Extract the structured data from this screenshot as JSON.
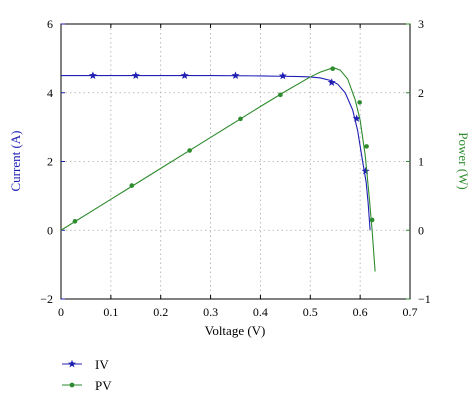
{
  "chart_data": {
    "type": "line",
    "xlabel": "Voltage (V)",
    "ylabel_left": "Current (A)",
    "ylabel_right": "Power (W)",
    "xlim": [
      0,
      0.7
    ],
    "ylim_left": [
      -2,
      6
    ],
    "ylim_right": [
      -1,
      3
    ],
    "x_ticks": [
      "0",
      "0.1",
      "0.2",
      "0.3",
      "0.4",
      "0.5",
      "0.6",
      "0.7"
    ],
    "y_left_ticks": [
      "−2",
      "0",
      "2",
      "4",
      "6"
    ],
    "y_right_ticks": [
      "−1",
      "0",
      "1",
      "2",
      "3"
    ],
    "grid": true,
    "legend_position": "bottom-left",
    "left_axis_color": "#1f1fb4",
    "right_axis_color": "#2e8b2e",
    "series": [
      {
        "name": "IV",
        "axis": "left",
        "color": "#1f1fb4",
        "marker": "star",
        "x": [
          0,
          0.1,
          0.2,
          0.3,
          0.4,
          0.44,
          0.48,
          0.5,
          0.52,
          0.54,
          0.555,
          0.57,
          0.585,
          0.595,
          0.605,
          0.612,
          0.616,
          0.62
        ],
        "y": [
          4.5,
          4.5,
          4.5,
          4.5,
          4.49,
          4.48,
          4.47,
          4.46,
          4.43,
          4.36,
          4.25,
          4.0,
          3.5,
          2.9,
          2.0,
          1.4,
          0.8,
          0.0
        ],
        "marker_x": [
          0.064,
          0.15,
          0.248,
          0.35,
          0.445,
          0.543,
          0.593,
          0.611
        ],
        "marker_y": [
          4.5,
          4.5,
          4.5,
          4.5,
          4.49,
          4.3,
          3.25,
          1.72
        ]
      },
      {
        "name": "PV",
        "axis": "right",
        "color": "#2e8b2e",
        "marker": "circle",
        "x": [
          0,
          0.1,
          0.2,
          0.3,
          0.4,
          0.45,
          0.5,
          0.52,
          0.54,
          0.548,
          0.56,
          0.575,
          0.59,
          0.6,
          0.61,
          0.618,
          0.624,
          0.63
        ],
        "y": [
          0,
          0.45,
          0.9,
          1.35,
          1.8,
          2.02,
          2.23,
          2.3,
          2.35,
          2.36,
          2.33,
          2.2,
          1.9,
          1.6,
          1.1,
          0.5,
          0.0,
          -0.6
        ],
        "marker_x": [
          0.028,
          0.142,
          0.258,
          0.36,
          0.44,
          0.545,
          0.599,
          0.613,
          0.624
        ],
        "marker_y": [
          0.13,
          0.65,
          1.16,
          1.62,
          1.97,
          2.35,
          1.86,
          1.22,
          0.15
        ]
      }
    ]
  }
}
